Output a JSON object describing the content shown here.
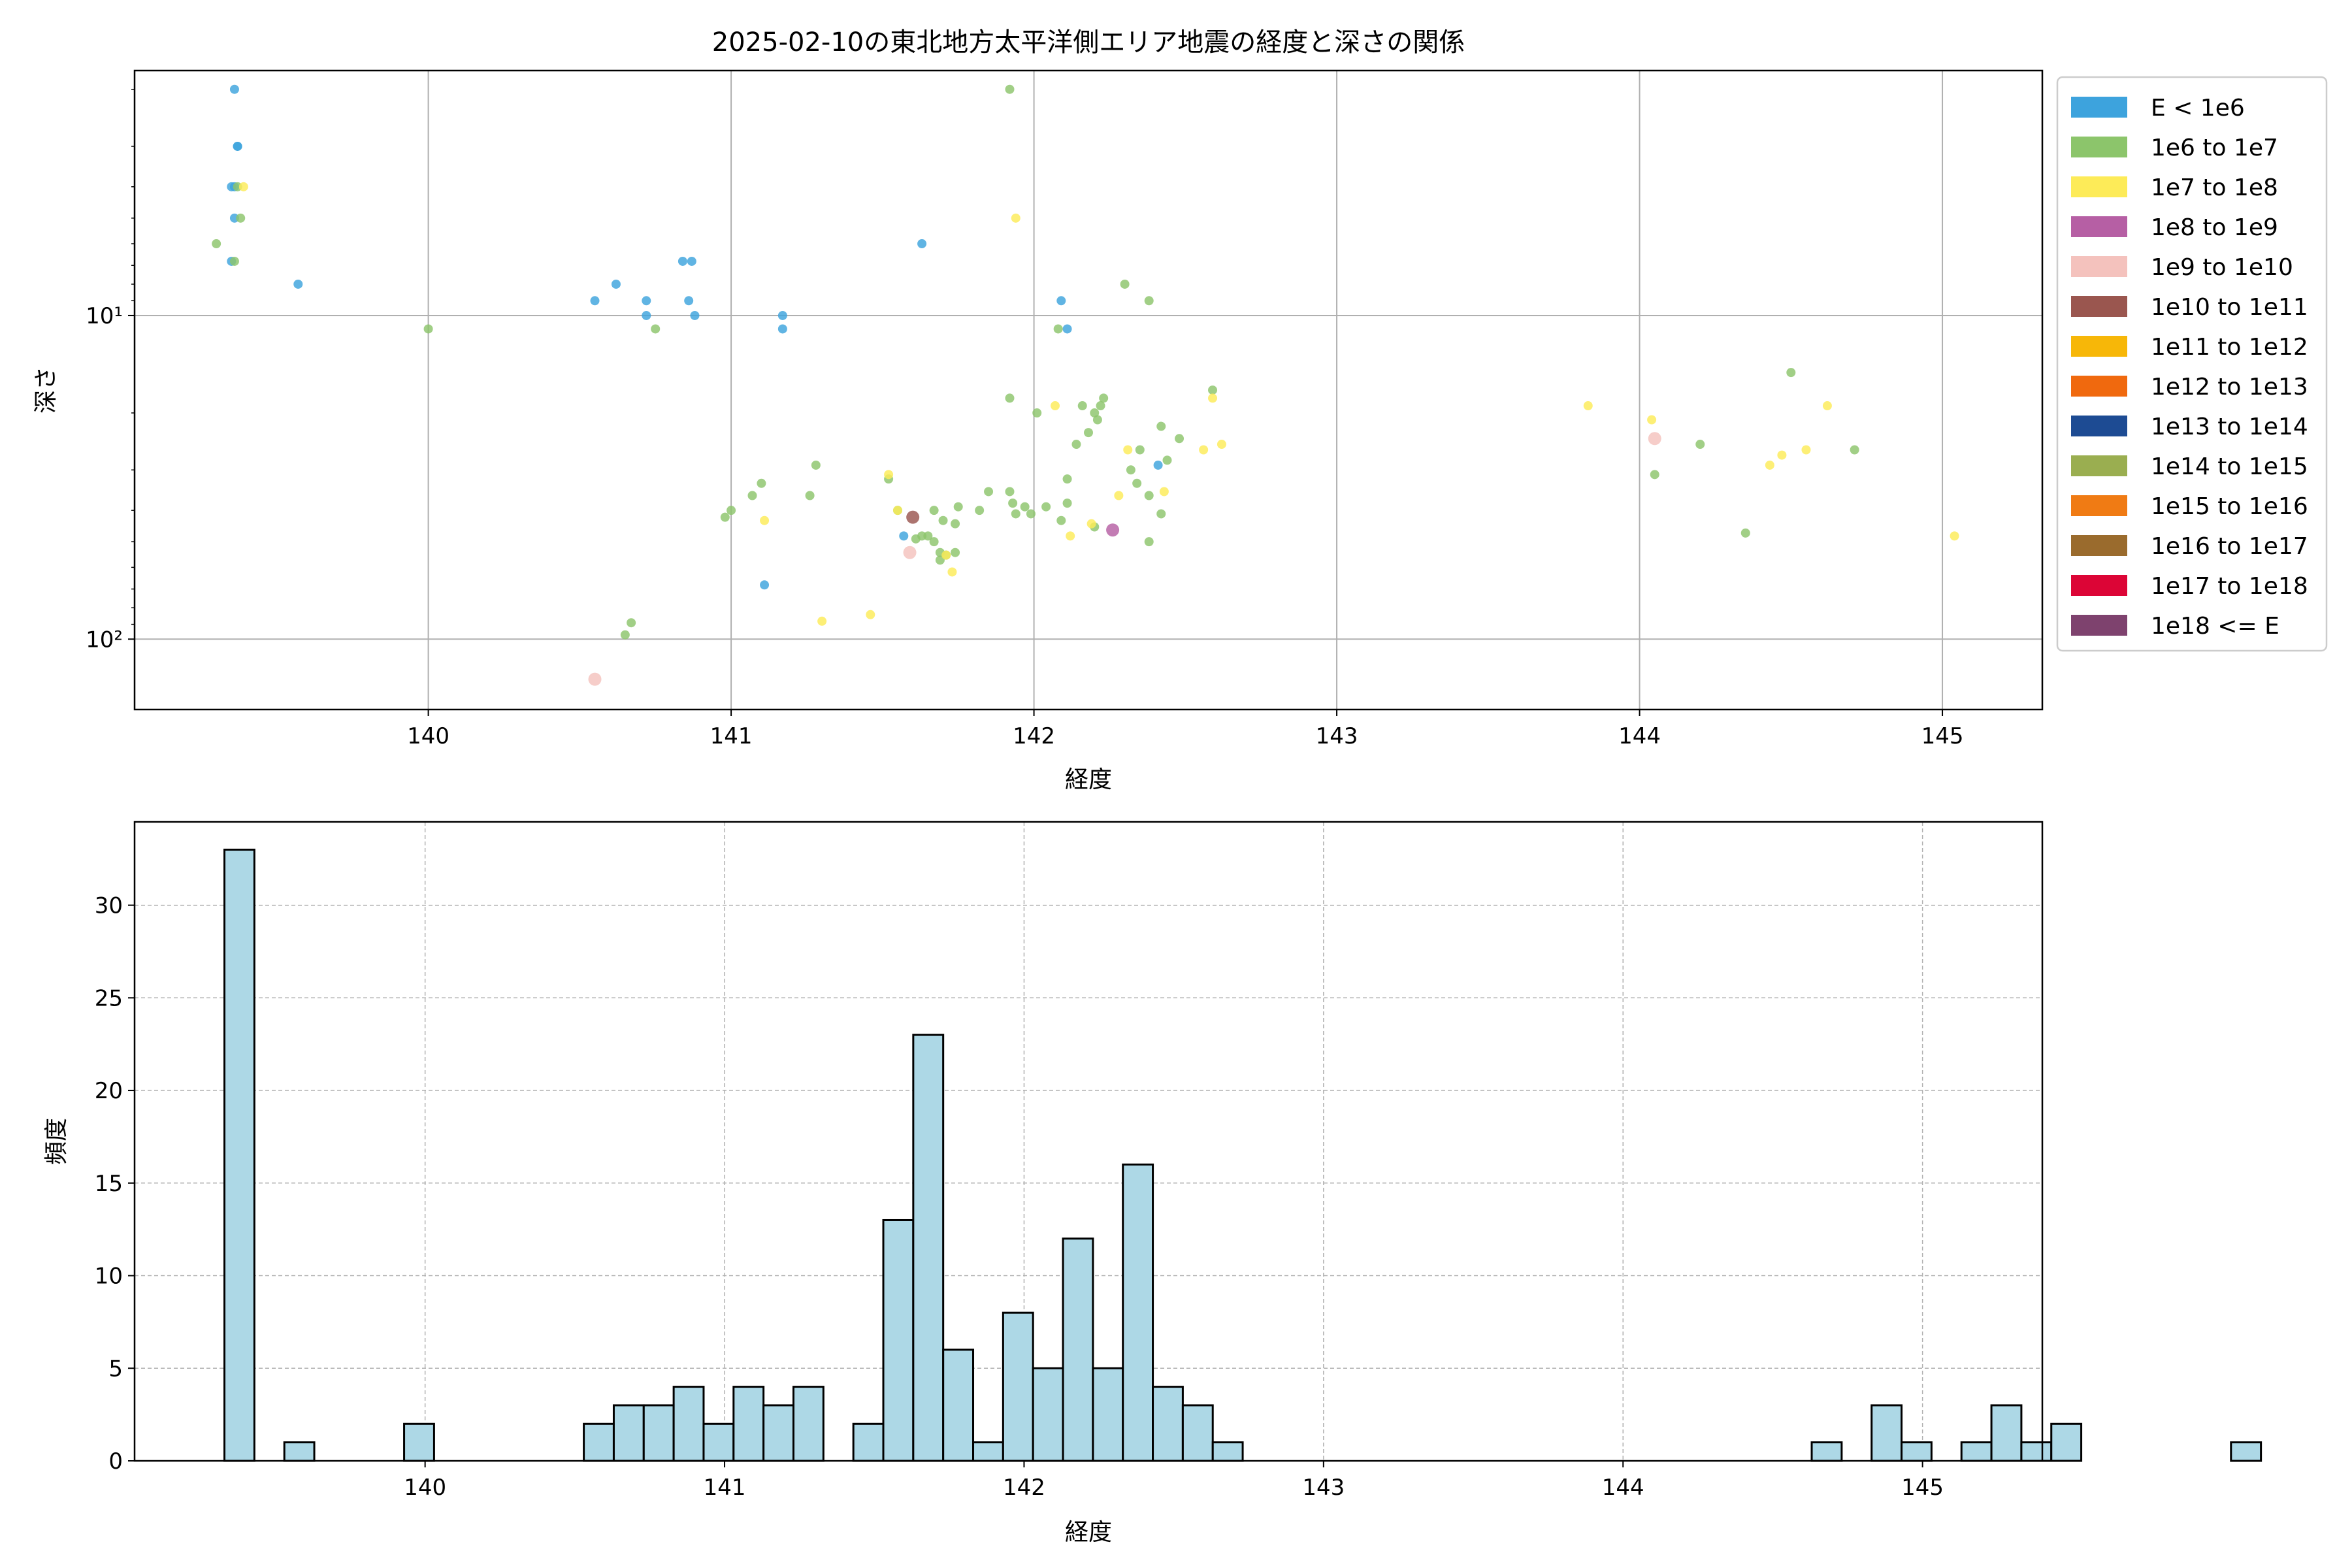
{
  "colors": {
    "E_lt_1e6": "#3da3dd",
    "1e6_1e7": "#8cc56b",
    "1e7_1e8": "#fdeb58",
    "1e8_1e9": "#b65fa4",
    "1e9_1e10": "#f4c2bd",
    "1e10_1e11": "#9a564f",
    "1e11_1e12": "#f7b708",
    "1e12_1e13": "#f0690e",
    "1e13_1e14": "#1d4b93",
    "1e14_1e15": "#9aae50",
    "1e15_1e16": "#f07b14",
    "1e16_1e17": "#9a6b2d",
    "1e17_1e18": "#dc0536",
    "1e18_E": "#7e426e",
    "hist_fill": "#add8e6"
  },
  "chart_data": [
    {
      "type": "scatter",
      "title": "2025-02-10の東北地方太平洋側エリア地震の経度と深さの関係",
      "xlabel": "経度",
      "ylabel": "深さ",
      "yscale": "log",
      "yaxis_inverted": true,
      "xlim": [
        139.03,
        145.33
      ],
      "ylim": [
        1.75,
        165
      ],
      "xticks": [
        140,
        141,
        142,
        143,
        144,
        145
      ],
      "xtick_labels": [
        "140",
        "141",
        "142",
        "143",
        "144",
        "145"
      ],
      "yticks": [
        10,
        100
      ],
      "ytick_labels": [
        "10¹",
        "10²"
      ],
      "grid": true,
      "legend_position": "outside-right",
      "legend": [
        {
          "label": "E < 1e6",
          "key": "E_lt_1e6"
        },
        {
          "label": "1e6 to 1e7",
          "key": "1e6_1e7"
        },
        {
          "label": "1e7 to 1e8",
          "key": "1e7_1e8"
        },
        {
          "label": "1e8 to 1e9",
          "key": "1e8_1e9"
        },
        {
          "label": "1e9 to 1e10",
          "key": "1e9_1e10"
        },
        {
          "label": "1e10 to 1e11",
          "key": "1e10_1e11"
        },
        {
          "label": "1e11 to 1e12",
          "key": "1e11_1e12"
        },
        {
          "label": "1e12 to 1e13",
          "key": "1e12_1e13"
        },
        {
          "label": "1e13 to 1e14",
          "key": "1e13_1e14"
        },
        {
          "label": "1e14 to 1e15",
          "key": "1e14_1e15"
        },
        {
          "label": "1e15 to 1e16",
          "key": "1e15_1e16"
        },
        {
          "label": "1e16 to 1e17",
          "key": "1e16_1e17"
        },
        {
          "label": "1e17 to 1e18",
          "key": "1e17_1e18"
        },
        {
          "label": "1e18 <= E",
          "key": "1e18_E"
        }
      ],
      "series": [
        {
          "key": "E_lt_1e6",
          "points": [
            [
              139.36,
              2.0
            ],
            [
              139.37,
              3.0
            ],
            [
              139.37,
              3.0
            ],
            [
              139.35,
              4.0
            ],
            [
              139.36,
              4.0
            ],
            [
              139.36,
              5.0
            ],
            [
              139.35,
              6.8
            ],
            [
              139.57,
              8.0
            ],
            [
              140.55,
              9.0
            ],
            [
              140.62,
              8.0
            ],
            [
              140.72,
              9.0
            ],
            [
              140.72,
              10.0
            ],
            [
              140.84,
              6.8
            ],
            [
              140.87,
              6.8
            ],
            [
              140.86,
              9.0
            ],
            [
              140.88,
              10.0
            ],
            [
              141.17,
              10.0
            ],
            [
              141.17,
              11.0
            ],
            [
              141.63,
              6.0
            ],
            [
              142.09,
              9.0
            ],
            [
              142.11,
              11.0
            ],
            [
              141.11,
              68.0
            ],
            [
              141.57,
              48.0
            ],
            [
              142.41,
              29.0
            ]
          ]
        },
        {
          "key": "1e6_1e7",
          "points": [
            [
              139.37,
              4.0
            ],
            [
              139.38,
              5.0
            ],
            [
              139.3,
              6.0
            ],
            [
              139.36,
              6.8
            ],
            [
              140.0,
              11.0
            ],
            [
              140.75,
              11.0
            ],
            [
              141.92,
              2.0
            ],
            [
              142.08,
              11.0
            ],
            [
              142.3,
              8.0
            ],
            [
              142.38,
              9.0
            ],
            [
              141.92,
              18.0
            ],
            [
              142.01,
              20.0
            ],
            [
              142.16,
              19.0
            ],
            [
              142.2,
              20.0
            ],
            [
              142.23,
              18.0
            ],
            [
              142.22,
              19.0
            ],
            [
              142.59,
              17.0
            ],
            [
              142.18,
              23.0
            ],
            [
              142.21,
              21.0
            ],
            [
              142.14,
              25.0
            ],
            [
              142.42,
              22.0
            ],
            [
              142.48,
              24.0
            ],
            [
              142.35,
              26.0
            ],
            [
              142.44,
              28.0
            ],
            [
              142.32,
              30.0
            ],
            [
              142.34,
              33.0
            ],
            [
              142.38,
              36.0
            ],
            [
              142.11,
              32.0
            ],
            [
              142.11,
              38.0
            ],
            [
              142.2,
              45.0
            ],
            [
              142.42,
              41.0
            ],
            [
              142.38,
              50.0
            ],
            [
              141.1,
              33.0
            ],
            [
              141.07,
              36.0
            ],
            [
              141.26,
              36.0
            ],
            [
              141.28,
              29.0
            ],
            [
              140.98,
              42.0
            ],
            [
              141.0,
              40.0
            ],
            [
              141.52,
              32.0
            ],
            [
              141.67,
              40.0
            ],
            [
              141.7,
              43.0
            ],
            [
              141.63,
              48.0
            ],
            [
              141.67,
              50.0
            ],
            [
              141.61,
              49.0
            ],
            [
              141.65,
              48.0
            ],
            [
              141.74,
              54.0
            ],
            [
              141.69,
              57.0
            ],
            [
              141.71,
              55.0
            ],
            [
              141.75,
              39.0
            ],
            [
              141.74,
              44.0
            ],
            [
              141.82,
              40.0
            ],
            [
              141.85,
              35.0
            ],
            [
              141.92,
              35.0
            ],
            [
              141.93,
              38.0
            ],
            [
              141.97,
              39.0
            ],
            [
              141.99,
              41.0
            ],
            [
              142.04,
              39.0
            ],
            [
              142.09,
              43.0
            ],
            [
              141.94,
              41.0
            ],
            [
              141.69,
              54.0
            ],
            [
              141.55,
              40.0
            ],
            [
              144.05,
              31.0
            ],
            [
              144.2,
              25.0
            ],
            [
              144.35,
              47.0
            ],
            [
              144.5,
              15.0
            ],
            [
              144.71,
              26.0
            ],
            [
              140.67,
              89.0
            ],
            [
              140.65,
              97.0
            ]
          ]
        },
        {
          "key": "1e7_1e8",
          "points": [
            [
              139.39,
              4.0
            ],
            [
              141.94,
              5.0
            ],
            [
              142.07,
              19.0
            ],
            [
              142.31,
              26.0
            ],
            [
              142.59,
              18.0
            ],
            [
              142.62,
              25.0
            ],
            [
              142.56,
              26.0
            ],
            [
              142.43,
              35.0
            ],
            [
              142.28,
              36.0
            ],
            [
              142.12,
              48.0
            ],
            [
              142.19,
              44.0
            ],
            [
              141.52,
              31.0
            ],
            [
              141.55,
              40.0
            ],
            [
              141.11,
              43.0
            ],
            [
              141.73,
              62.0
            ],
            [
              141.71,
              55.0
            ],
            [
              141.3,
              88.0
            ],
            [
              141.46,
              84.0
            ],
            [
              143.83,
              19.0
            ],
            [
              144.04,
              21.0
            ],
            [
              144.43,
              29.0
            ],
            [
              144.47,
              27.0
            ],
            [
              144.55,
              26.0
            ],
            [
              144.62,
              19.0
            ],
            [
              145.04,
              48.0
            ]
          ]
        },
        {
          "key": "1e8_1e9",
          "points": [
            [
              142.26,
              46.0
            ]
          ]
        },
        {
          "key": "1e9_1e10",
          "points": [
            [
              141.59,
              54.0
            ],
            [
              140.55,
              133.0
            ],
            [
              144.05,
              24.0
            ]
          ]
        },
        {
          "key": "1e10_1e11",
          "points": [
            [
              141.6,
              42.0
            ]
          ]
        }
      ]
    },
    {
      "type": "bar",
      "subtype": "histogram",
      "xlabel": "経度",
      "ylabel": "頻度",
      "xlim": [
        139.03,
        145.4
      ],
      "ylim": [
        0,
        34.5
      ],
      "xticks": [
        140,
        141,
        142,
        143,
        144,
        145
      ],
      "xtick_labels": [
        "140",
        "141",
        "142",
        "143",
        "144",
        "145"
      ],
      "yticks": [
        0,
        5,
        10,
        15,
        20,
        25,
        30
      ],
      "ytick_labels": [
        "0",
        "5",
        "10",
        "15",
        "20",
        "25",
        "30"
      ],
      "grid": true,
      "bin_start": 139.33,
      "bin_width": 0.1,
      "values": [
        33,
        0,
        1,
        0,
        0,
        0,
        2,
        0,
        0,
        0,
        0,
        0,
        2,
        3,
        3,
        4,
        2,
        4,
        3,
        4,
        0,
        2,
        13,
        23,
        6,
        1,
        8,
        5,
        12,
        5,
        16,
        4,
        3,
        1,
        0,
        0,
        0,
        0,
        0,
        0,
        0,
        0,
        0,
        0,
        0,
        0,
        0,
        0,
        0,
        0,
        0,
        0,
        0,
        1,
        0,
        3,
        1,
        0,
        1,
        3,
        1,
        2,
        0,
        0,
        0,
        0,
        0,
        1
      ]
    }
  ]
}
